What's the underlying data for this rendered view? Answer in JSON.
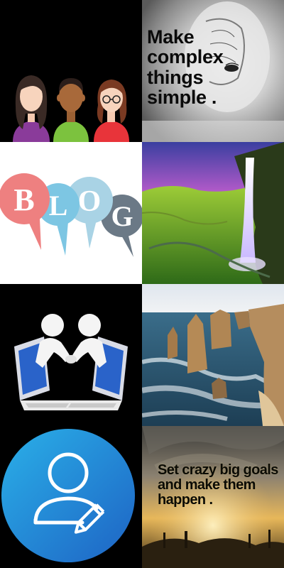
{
  "tiles": {
    "quote_complex": {
      "text": "Make\ncomplex\nthings\nsimple ."
    },
    "blog": {
      "letters": [
        "B",
        "L",
        "O",
        "G"
      ],
      "colors": [
        "#ee8080",
        "#7dc6e3",
        "#a9d3e5",
        "#6b7986"
      ]
    },
    "quote_goals": {
      "text": "Set crazy big goals\nand make them\nhappen ."
    }
  },
  "icons": {
    "team": "team-avatars-icon",
    "brain": "brain-sketch-icon",
    "waterfall": "waterfall-photo",
    "handshake": "handshake-laptops-icon",
    "coast": "coastal-rocks-photo",
    "editor": "user-edit-icon",
    "sunrise": "hands-sunrise-photo"
  },
  "colors": {
    "background": "#000000",
    "editor_circle_start": "#2ab0e8",
    "editor_circle_end": "#1e63c4"
  }
}
